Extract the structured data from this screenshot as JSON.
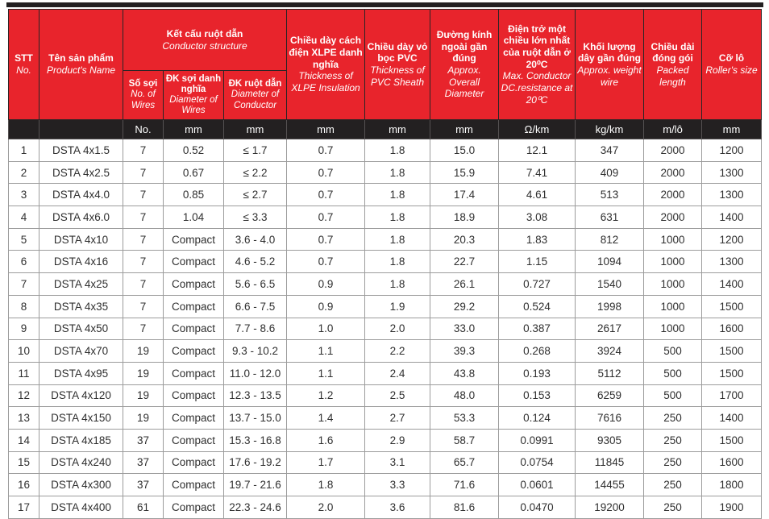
{
  "colors": {
    "header_red": "#e8242c",
    "bar_black": "#232021",
    "grid_gray": "#9c9c9c",
    "header_text": "#ffffff"
  },
  "table": {
    "header": {
      "stt": {
        "vi": "STT",
        "en": "No."
      },
      "product": {
        "vi": "Tên sản phẩm",
        "en": "Product's Name"
      },
      "conductor": {
        "vi": "Kết cấu ruột dẫn",
        "en": "Conductor structure"
      },
      "wires": {
        "vi": "Số sợi",
        "en": "No. of Wires"
      },
      "wire_dia": {
        "vi": "ĐK sợi danh nghĩa",
        "en": "Diameter of Wires"
      },
      "cond_dia": {
        "vi": "ĐK ruột dẫn",
        "en": "Diameter of Conductor"
      },
      "xlpe": {
        "vi": "Chiều dày cách điện XLPE danh nghĩa",
        "en": "Thickness of XLPE Insulation"
      },
      "pvc": {
        "vi": "Chiều dày vỏ bọc PVC",
        "en": "Thickness of PVC Sheath"
      },
      "od": {
        "vi": "Đường kính ngoài gần đúng",
        "en": "Approx. Overall Diameter"
      },
      "resistance": {
        "vi": "Điện trở một chiều lớn nhất của ruột dẫn ở 20⁰C",
        "en": "Max. Conductor DC.resistance at 20⁰C"
      },
      "weight": {
        "vi": "Khối lượng dây gần đúng",
        "en": "Approx. weight wire"
      },
      "packed": {
        "vi": "Chiều dài đóng gói",
        "en": "Packed length"
      },
      "roller": {
        "vi": "Cỡ lô",
        "en": "Roller's size"
      }
    },
    "units": [
      "",
      "",
      "No.",
      "mm",
      "mm",
      "mm",
      "mm",
      "mm",
      "Ω/km",
      "kg/km",
      "m/lô",
      "mm"
    ],
    "rows": [
      [
        "1",
        "DSTA 4x1.5",
        "7",
        "0.52",
        "≤ 1.7",
        "0.7",
        "1.8",
        "15.0",
        "12.1",
        "347",
        "2000",
        "1200"
      ],
      [
        "2",
        "DSTA 4x2.5",
        "7",
        "0.67",
        "≤ 2.2",
        "0.7",
        "1.8",
        "15.9",
        "7.41",
        "409",
        "2000",
        "1300"
      ],
      [
        "3",
        "DSTA 4x4.0",
        "7",
        "0.85",
        "≤ 2.7",
        "0.7",
        "1.8",
        "17.4",
        "4.61",
        "513",
        "2000",
        "1300"
      ],
      [
        "4",
        "DSTA 4x6.0",
        "7",
        "1.04",
        "≤ 3.3",
        "0.7",
        "1.8",
        "18.9",
        "3.08",
        "631",
        "2000",
        "1400"
      ],
      [
        "5",
        "DSTA 4x10",
        "7",
        "Compact",
        "3.6 - 4.0",
        "0.7",
        "1.8",
        "20.3",
        "1.83",
        "812",
        "1000",
        "1200"
      ],
      [
        "6",
        "DSTA 4x16",
        "7",
        "Compact",
        "4.6 - 5.2",
        "0.7",
        "1.8",
        "22.7",
        "1.15",
        "1094",
        "1000",
        "1300"
      ],
      [
        "7",
        "DSTA 4x25",
        "7",
        "Compact",
        "5.6 - 6.5",
        "0.9",
        "1.8",
        "26.1",
        "0.727",
        "1540",
        "1000",
        "1400"
      ],
      [
        "8",
        "DSTA 4x35",
        "7",
        "Compact",
        "6.6 - 7.5",
        "0.9",
        "1.9",
        "29.2",
        "0.524",
        "1998",
        "1000",
        "1500"
      ],
      [
        "9",
        "DSTA 4x50",
        "7",
        "Compact",
        "7.7 - 8.6",
        "1.0",
        "2.0",
        "33.0",
        "0.387",
        "2617",
        "1000",
        "1600"
      ],
      [
        "10",
        "DSTA 4x70",
        "19",
        "Compact",
        "9.3 - 10.2",
        "1.1",
        "2.2",
        "39.3",
        "0.268",
        "3924",
        "500",
        "1500"
      ],
      [
        "11",
        "DSTA 4x95",
        "19",
        "Compact",
        "11.0 - 12.0",
        "1.1",
        "2.4",
        "43.8",
        "0.193",
        "5112",
        "500",
        "1500"
      ],
      [
        "12",
        "DSTA 4x120",
        "19",
        "Compact",
        "12.3 - 13.5",
        "1.2",
        "2.5",
        "48.0",
        "0.153",
        "6259",
        "500",
        "1700"
      ],
      [
        "13",
        "DSTA 4x150",
        "19",
        "Compact",
        "13.7 - 15.0",
        "1.4",
        "2.7",
        "53.3",
        "0.124",
        "7616",
        "250",
        "1400"
      ],
      [
        "14",
        "DSTA 4x185",
        "37",
        "Compact",
        "15.3 - 16.8",
        "1.6",
        "2.9",
        "58.7",
        "0.0991",
        "9305",
        "250",
        "1500"
      ],
      [
        "15",
        "DSTA 4x240",
        "37",
        "Compact",
        "17.6 - 19.2",
        "1.7",
        "3.1",
        "65.7",
        "0.0754",
        "11845",
        "250",
        "1600"
      ],
      [
        "16",
        "DSTA 4x300",
        "37",
        "Compact",
        "19.7 - 21.6",
        "1.8",
        "3.3",
        "71.6",
        "0.0601",
        "14455",
        "250",
        "1800"
      ],
      [
        "17",
        "DSTA 4x400",
        "61",
        "Compact",
        "22.3 - 24.6",
        "2.0",
        "3.6",
        "81.6",
        "0.0470",
        "19200",
        "250",
        "1900"
      ]
    ]
  }
}
